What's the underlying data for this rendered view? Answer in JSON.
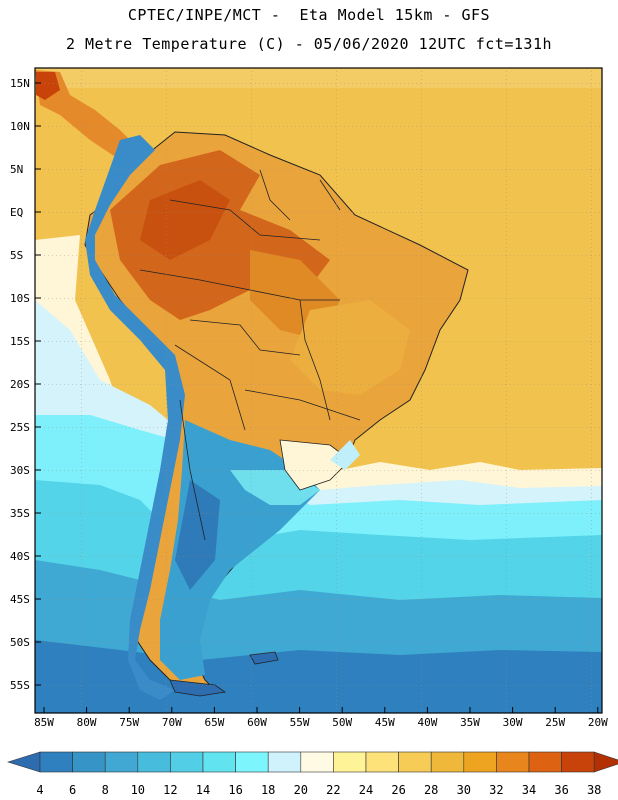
{
  "header": {
    "line1": "CPTEC/INPE/MCT -  Eta Model 15km - GFS",
    "line2": "2 Metre Temperature (C) - 05/06/2020 12UTC fct=131h"
  },
  "map": {
    "lat_labels": [
      "15N",
      "10N",
      "5N",
      "EQ",
      "5S",
      "10S",
      "15S",
      "20S",
      "25S",
      "30S",
      "35S",
      "40S",
      "45S",
      "50S",
      "55S"
    ],
    "lon_labels": [
      "85W",
      "80W",
      "75W",
      "70W",
      "65W",
      "60W",
      "55W",
      "50W",
      "45W",
      "40W",
      "35W",
      "30W",
      "25W",
      "20W"
    ],
    "background_color": "#f2c24e",
    "grid": "dotted"
  },
  "colorbar": {
    "labels": [
      "4",
      "6",
      "8",
      "10",
      "12",
      "14",
      "16",
      "18",
      "20",
      "22",
      "24",
      "26",
      "28",
      "30",
      "32",
      "34",
      "36",
      "38"
    ],
    "colors": [
      "#2e6cb0",
      "#2f80bf",
      "#3794c6",
      "#40a8d2",
      "#48bcdc",
      "#52cfe6",
      "#62e3f0",
      "#7df5fd",
      "#d0f2fc",
      "#fffae4",
      "#fff397",
      "#fde27a",
      "#f6cc57",
      "#efb83b",
      "#eea321",
      "#e8851c",
      "#dd6312",
      "#c8430a",
      "#b23003"
    ]
  }
}
